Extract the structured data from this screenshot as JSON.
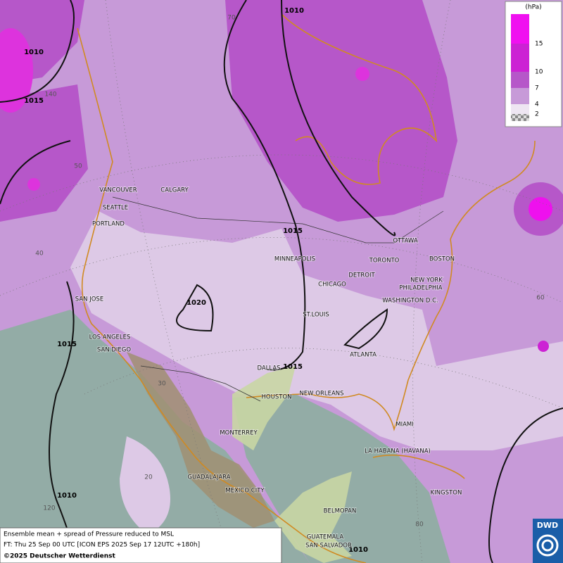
{
  "legend": {
    "unit": "(hPa)",
    "levels": [
      {
        "value": 15,
        "color": "#cc22d4"
      },
      {
        "value": 10,
        "color": "#b657c9"
      },
      {
        "value": 7,
        "color": "#c79ad8"
      },
      {
        "value": 4,
        "color": "#ddc9e6"
      },
      {
        "value": 2,
        "color": "#eee6f2"
      }
    ],
    "top_color": "#f010f0"
  },
  "isobar_labels": [
    "1010",
    "1010",
    "1015",
    "1015",
    "1020",
    "1015",
    "1015",
    "1010",
    "1010"
  ],
  "grid_labels": [
    "70",
    "140",
    "50",
    "40",
    "30",
    "20",
    "120",
    "60",
    "80"
  ],
  "cities": [
    "VANCOUVER",
    "CALGARY",
    "SEATTLE",
    "PORTLAND",
    "MINNEAPOLIS",
    "OTTAWA",
    "TORONTO",
    "BOSTON",
    "DETROIT",
    "CHICAGO",
    "NEW YORK",
    "PHILADELPHIA",
    "WASHINGTON D.C.",
    "SAN JOSE",
    "ST.LOUIS",
    "LOS ANGELES",
    "SAN DIEGO",
    "ATLANTA",
    "DALLAS",
    "HOUSTON",
    "NEW ORLEANS",
    "MIAMI",
    "MONTERREY",
    "LA HABANA (HAVANA)",
    "GUADALAJARA",
    "MEXICO CITY",
    "KINGSTON",
    "BELMOPAN",
    "GUATEMALA",
    "SAN SALVADOR"
  ],
  "caption": {
    "line1": "Ensemble mean + spread of Pressure reduced to MSL",
    "line2": "FT: Thu 25 Sep 00 UTC [ICON EPS 2025 Sep 17 12UTC +180h]",
    "line3": "©2025 Deutscher Wetterdienst"
  },
  "logo": "DWD"
}
